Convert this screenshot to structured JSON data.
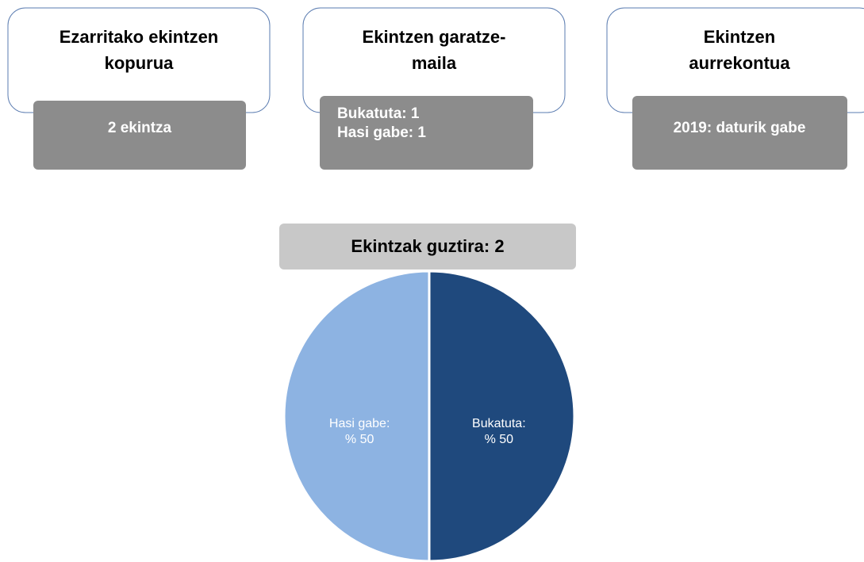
{
  "cards": [
    {
      "title": [
        "Ezarritako ekintzen",
        "kopurua"
      ],
      "value": [
        "2 ekintza"
      ]
    },
    {
      "title": [
        "Ekintzen garatze-",
        "maila"
      ],
      "value": [
        "Bukatuta: 1",
        "Hasi gabe: 1"
      ]
    },
    {
      "title": [
        "Ekintzen",
        "aurrekontua"
      ],
      "value": [
        "2019: daturik gabe"
      ]
    }
  ],
  "chart_data": {
    "type": "pie",
    "title": "Ekintzak guztira: 2",
    "categories": [
      "Bukatuta:",
      "Hasi gabe:"
    ],
    "values": [
      50,
      50
    ],
    "value_labels": [
      "% 50",
      "% 50"
    ],
    "colors": [
      "#1f497d",
      "#8db3e2"
    ]
  }
}
